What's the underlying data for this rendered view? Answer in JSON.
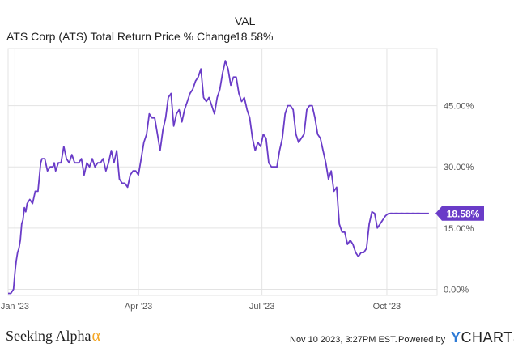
{
  "legend": {
    "header": "VAL",
    "series_label": "ATS Corp (ATS) Total Return Price % Change",
    "series_value": "18.58%"
  },
  "footer": {
    "brand": "Seeking Alpha",
    "brand_mark": "α",
    "timestamp": "Nov 10 2023, 3:27PM EST.",
    "powered_by": "Powered by",
    "ycharts_y": "Y",
    "ycharts_rest": "CHARTS"
  },
  "colors": {
    "series": "#6a3cc8",
    "grid": "#e3e3e3",
    "axis_text": "#555555",
    "badge_text": "#ffffff"
  },
  "chart_data": {
    "type": "line",
    "xlabel": "",
    "ylabel": "",
    "x_ticks": [
      "Jan '23",
      "Apr '23",
      "Jul '23",
      "Oct '23"
    ],
    "x_tick_days": [
      5,
      96,
      187,
      279
    ],
    "y_ticks": [
      "0.00%",
      "15.00%",
      "30.00%",
      "45.00%"
    ],
    "y_tick_values": [
      0,
      15,
      30,
      45
    ],
    "ylim": [
      -1.5,
      59
    ],
    "xlim": [
      0,
      316
    ],
    "grid": true,
    "end_label": "18.58%",
    "series": [
      {
        "name": "ATS Corp (ATS) Total Return Price % Change",
        "x": [
          0,
          2,
          4,
          5,
          6,
          7,
          8,
          9,
          10,
          11,
          12,
          13,
          14,
          16,
          18,
          20,
          22,
          24,
          25,
          27,
          29,
          31,
          33,
          34,
          35,
          37,
          39,
          41,
          43,
          45,
          47,
          49,
          50,
          52,
          54,
          56,
          58,
          60,
          62,
          64,
          66,
          68,
          70,
          72,
          74,
          76,
          78,
          80,
          82,
          84,
          86,
          88,
          90,
          92,
          94,
          96,
          98,
          100,
          102,
          104,
          106,
          108,
          110,
          112,
          114,
          116,
          118,
          120,
          122,
          124,
          126,
          128,
          130,
          132,
          134,
          136,
          138,
          140,
          142,
          144,
          146,
          148,
          150,
          152,
          154,
          156,
          158,
          160,
          162,
          164,
          166,
          168,
          170,
          172,
          174,
          176,
          178,
          180,
          182,
          184,
          186,
          188,
          190,
          192,
          194,
          196,
          198,
          200,
          202,
          204,
          206,
          208,
          210,
          212,
          214,
          216,
          218,
          220,
          222,
          224,
          226,
          228,
          230,
          232,
          234,
          236,
          238,
          240,
          242,
          244,
          246,
          248,
          250,
          252,
          254,
          256,
          258,
          260,
          262,
          264,
          266,
          268,
          270,
          272,
          274,
          276,
          278,
          280,
          282,
          284,
          286,
          288,
          290,
          292,
          294,
          296,
          298,
          300,
          302,
          304,
          306,
          307,
          308,
          309,
          310
        ],
        "values": [
          -1,
          -1,
          0,
          4,
          7,
          9,
          10,
          12,
          16,
          17,
          20,
          19,
          21,
          22,
          21,
          24,
          24,
          31,
          32,
          32,
          29,
          30,
          30,
          31,
          29,
          31,
          31,
          35,
          32,
          31,
          33,
          31,
          31,
          31,
          32,
          28,
          31,
          30,
          32,
          30,
          31,
          31,
          32,
          29,
          31,
          34,
          31,
          34,
          27,
          26,
          26,
          25,
          28,
          29,
          29,
          28,
          32,
          36,
          38,
          43,
          42,
          42,
          38,
          34,
          39,
          42,
          47,
          48,
          40,
          43,
          44,
          41,
          44,
          46,
          48,
          49,
          51,
          52,
          54,
          47,
          46,
          47,
          45,
          43,
          47,
          49,
          53,
          56,
          54,
          50,
          52,
          52,
          48,
          46,
          47,
          44,
          42,
          37,
          34,
          36,
          35,
          38,
          37,
          31,
          30,
          30,
          30,
          34,
          37,
          43,
          45,
          45,
          44,
          38,
          36,
          37,
          38,
          44,
          45,
          45,
          42,
          38,
          37,
          34,
          31,
          27,
          29,
          24,
          25,
          16,
          14,
          14,
          11,
          12,
          11,
          9,
          8,
          9,
          9,
          10,
          16,
          19,
          18.58,
          15,
          16,
          17,
          18,
          18.5,
          18.6,
          18.58,
          18.6,
          18.58,
          18.6,
          18.58,
          18.6,
          18.58,
          18.6,
          18.58,
          18.6,
          18.58,
          18.58,
          18.58,
          18.58,
          18.58,
          18.58
        ]
      }
    ]
  }
}
